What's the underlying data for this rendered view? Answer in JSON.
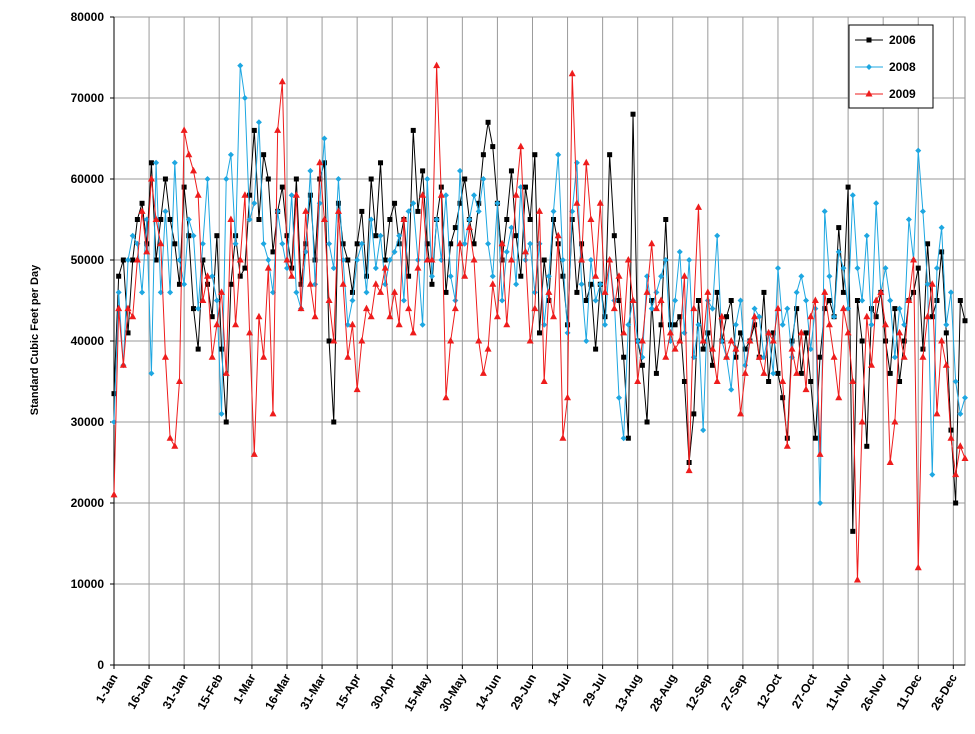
{
  "chart_data": {
    "type": "line",
    "y_label": "Standard Cubic Feet per Day",
    "x": [
      1,
      3,
      5,
      7,
      9,
      11,
      13,
      15,
      17,
      19,
      21,
      23,
      25,
      27,
      29,
      31,
      33,
      35,
      37,
      39,
      41,
      43,
      45,
      47,
      49,
      51,
      53,
      55,
      57,
      59,
      61,
      63,
      65,
      67,
      69,
      71,
      73,
      75,
      77,
      79,
      81,
      83,
      85,
      87,
      89,
      91,
      93,
      95,
      97,
      99,
      101,
      103,
      105,
      107,
      109,
      111,
      113,
      115,
      117,
      119,
      121,
      123,
      125,
      127,
      129,
      131,
      133,
      135,
      137,
      139,
      141,
      143,
      145,
      147,
      149,
      151,
      153,
      155,
      157,
      159,
      161,
      163,
      165,
      167,
      169,
      171,
      173,
      175,
      177,
      179,
      181,
      183,
      185,
      187,
      189,
      191,
      193,
      195,
      197,
      199,
      201,
      203,
      205,
      207,
      209,
      211,
      213,
      215,
      217,
      219,
      221,
      223,
      225,
      227,
      229,
      231,
      233,
      235,
      237,
      239,
      241,
      243,
      245,
      247,
      249,
      251,
      253,
      255,
      257,
      259,
      261,
      263,
      265,
      267,
      269,
      271,
      273,
      275,
      277,
      279,
      281,
      283,
      285,
      287,
      289,
      291,
      293,
      295,
      297,
      299,
      301,
      303,
      305,
      307,
      309,
      311,
      313,
      315,
      317,
      319,
      321,
      323,
      325,
      327,
      329,
      331,
      333,
      335,
      337,
      339,
      341,
      343,
      345,
      347,
      349,
      351,
      353,
      355,
      357,
      359,
      361,
      363,
      365
    ],
    "xlim": [
      1,
      365
    ],
    "xticks": [
      {
        "value": 1,
        "label": "1-Jan"
      },
      {
        "value": 16,
        "label": "16-Jan"
      },
      {
        "value": 31,
        "label": "31-Jan"
      },
      {
        "value": 46,
        "label": "15-Feb"
      },
      {
        "value": 60,
        "label": "1-Mar"
      },
      {
        "value": 75,
        "label": "16-Mar"
      },
      {
        "value": 90,
        "label": "31-Mar"
      },
      {
        "value": 105,
        "label": "15-Apr"
      },
      {
        "value": 120,
        "label": "30-Apr"
      },
      {
        "value": 135,
        "label": "15-May"
      },
      {
        "value": 150,
        "label": "30-May"
      },
      {
        "value": 165,
        "label": "14-Jun"
      },
      {
        "value": 180,
        "label": "29-Jun"
      },
      {
        "value": 195,
        "label": "14-Jul"
      },
      {
        "value": 210,
        "label": "29-Jul"
      },
      {
        "value": 225,
        "label": "13-Aug"
      },
      {
        "value": 240,
        "label": "28-Aug"
      },
      {
        "value": 255,
        "label": "12-Sep"
      },
      {
        "value": 270,
        "label": "27-Sep"
      },
      {
        "value": 285,
        "label": "12-Oct"
      },
      {
        "value": 300,
        "label": "27-Oct"
      },
      {
        "value": 315,
        "label": "11-Nov"
      },
      {
        "value": 330,
        "label": "26-Nov"
      },
      {
        "value": 345,
        "label": "11-Dec"
      },
      {
        "value": 360,
        "label": "26-Dec"
      }
    ],
    "ylim": [
      0,
      80000
    ],
    "yticks": [
      0,
      10000,
      20000,
      30000,
      40000,
      50000,
      60000,
      70000,
      80000
    ],
    "grid": true,
    "legend": "top-right",
    "series": [
      {
        "name": "2006",
        "color": "#000000",
        "marker": "square",
        "values": [
          33500,
          48000,
          50000,
          41000,
          50000,
          55000,
          57000,
          52000,
          62000,
          50000,
          55000,
          60000,
          55000,
          52000,
          47000,
          59000,
          53000,
          44000,
          39000,
          50000,
          47000,
          43000,
          53000,
          39000,
          30000,
          47000,
          53000,
          48000,
          49000,
          58000,
          66000,
          55000,
          63000,
          60000,
          51000,
          56000,
          59000,
          53000,
          49000,
          60000,
          47000,
          52000,
          58000,
          50000,
          60000,
          62000,
          40000,
          30000,
          57000,
          52000,
          50000,
          46000,
          52000,
          56000,
          48000,
          60000,
          53000,
          62000,
          50000,
          55000,
          57000,
          52000,
          55000,
          48000,
          66000,
          56000,
          61000,
          52000,
          47000,
          55000,
          59000,
          46000,
          52000,
          54000,
          57000,
          60000,
          55000,
          52000,
          57000,
          63000,
          67000,
          64000,
          57000,
          50000,
          55000,
          61000,
          53000,
          48000,
          59000,
          55000,
          63000,
          41000,
          50000,
          45000,
          55000,
          52000,
          48000,
          42000,
          55000,
          46000,
          52000,
          45000,
          47000,
          39000,
          47000,
          43000,
          63000,
          53000,
          45000,
          38000,
          28000,
          68000,
          40000,
          37000,
          30000,
          45000,
          36000,
          42000,
          55000,
          42000,
          42000,
          43000,
          35000,
          25000,
          31000,
          45000,
          39000,
          41000,
          37000,
          46000,
          40000,
          43000,
          45000,
          38000,
          41000,
          39000,
          40000,
          42000,
          38000,
          46000,
          35000,
          41000,
          36000,
          33000,
          28000,
          40000,
          44000,
          36000,
          41000,
          35000,
          28000,
          38000,
          44000,
          45000,
          43000,
          54000,
          46000,
          59000,
          16500,
          45000,
          40000,
          27000,
          44000,
          43000,
          46000,
          40000,
          36000,
          44000,
          35000,
          40000,
          45000,
          46000,
          49000,
          39000,
          52000,
          43000,
          45000,
          51000,
          41000,
          29000,
          20000,
          45000,
          42500
        ]
      },
      {
        "name": "2008",
        "color": "#1ea7e1",
        "marker": "diamond",
        "values": [
          30000,
          46000,
          37000,
          50000,
          53000,
          52000,
          46000,
          55000,
          36000,
          62000,
          46000,
          56000,
          46000,
          62000,
          50000,
          47000,
          55000,
          53000,
          44000,
          52000,
          60000,
          48000,
          45000,
          31000,
          60000,
          63000,
          52000,
          74000,
          70000,
          55000,
          57000,
          67000,
          52000,
          50000,
          46000,
          56000,
          52000,
          49000,
          58000,
          46000,
          44000,
          51000,
          61000,
          47000,
          57000,
          65000,
          52000,
          49000,
          60000,
          50000,
          42000,
          45000,
          50000,
          52000,
          46000,
          55000,
          49000,
          53000,
          47000,
          50000,
          51000,
          53000,
          45000,
          56000,
          57000,
          50000,
          42000,
          60000,
          48000,
          55000,
          50000,
          58000,
          48000,
          45000,
          61000,
          52000,
          55000,
          58000,
          56000,
          60000,
          52000,
          48000,
          57000,
          45000,
          51000,
          54000,
          47000,
          59000,
          50000,
          52000,
          46000,
          52000,
          42000,
          48000,
          56000,
          63000,
          50000,
          41000,
          56000,
          62000,
          47000,
          40000,
          50000,
          45000,
          47000,
          42000,
          50000,
          45000,
          33000,
          28000,
          42000,
          45000,
          40000,
          38000,
          48000,
          44000,
          46000,
          48000,
          50000,
          40000,
          45000,
          51000,
          41000,
          50000,
          38000,
          42000,
          29000,
          45000,
          44000,
          53000,
          40000,
          38000,
          34000,
          42000,
          45000,
          37000,
          40000,
          44000,
          43000,
          38000,
          41000,
          36000,
          49000,
          42000,
          44000,
          38000,
          46000,
          48000,
          45000,
          39000,
          44000,
          20000,
          56000,
          48000,
          43000,
          51000,
          49000,
          44000,
          58000,
          49000,
          45000,
          53000,
          42000,
          57000,
          46000,
          49000,
          45000,
          38000,
          44000,
          42000,
          55000,
          50000,
          63500,
          56000,
          47000,
          23500,
          49000,
          54000,
          42000,
          46000,
          35000,
          31000,
          33000
        ]
      },
      {
        "name": "2009",
        "color": "#ee1c1c",
        "marker": "triangle",
        "values": [
          21000,
          44000,
          37000,
          44000,
          43000,
          50000,
          56000,
          51000,
          60000,
          55000,
          52000,
          38000,
          28000,
          27000,
          35000,
          66000,
          63000,
          61000,
          58000,
          45000,
          48000,
          38000,
          42000,
          46000,
          36000,
          55000,
          42000,
          50000,
          58000,
          41000,
          26000,
          43000,
          38000,
          49000,
          31000,
          66000,
          72000,
          50000,
          48000,
          58000,
          44000,
          56000,
          47000,
          43000,
          62000,
          55000,
          45000,
          40000,
          56000,
          47000,
          38000,
          42000,
          34000,
          40000,
          44000,
          43000,
          47000,
          46000,
          49000,
          43000,
          46000,
          42000,
          55000,
          44000,
          41000,
          49000,
          58000,
          50000,
          50000,
          74000,
          58000,
          33000,
          40000,
          44000,
          52000,
          48000,
          54000,
          50000,
          40000,
          36000,
          39000,
          47000,
          43000,
          52000,
          42000,
          50000,
          58000,
          64000,
          51000,
          40000,
          44000,
          56000,
          35000,
          46000,
          43000,
          53000,
          28000,
          33000,
          73000,
          57000,
          50000,
          62000,
          55000,
          48000,
          57000,
          46000,
          50000,
          44000,
          48000,
          41000,
          50000,
          45000,
          35000,
          40000,
          46000,
          52000,
          44000,
          45000,
          38000,
          41000,
          39000,
          40000,
          48000,
          24000,
          44000,
          56500,
          40000,
          46000,
          39000,
          35000,
          43000,
          38000,
          40000,
          39000,
          31000,
          36000,
          40000,
          43000,
          38000,
          36000,
          41000,
          40000,
          44000,
          35000,
          27000,
          39000,
          36000,
          41000,
          34000,
          43000,
          45000,
          26000,
          46000,
          42000,
          38000,
          33000,
          44000,
          41000,
          35000,
          10500,
          30000,
          43000,
          37000,
          45000,
          46000,
          42000,
          25000,
          30000,
          41000,
          38000,
          45000,
          50000,
          12000,
          38000,
          43000,
          47000,
          31000,
          40000,
          37000,
          28000,
          23500,
          27000,
          25500
        ]
      }
    ]
  }
}
